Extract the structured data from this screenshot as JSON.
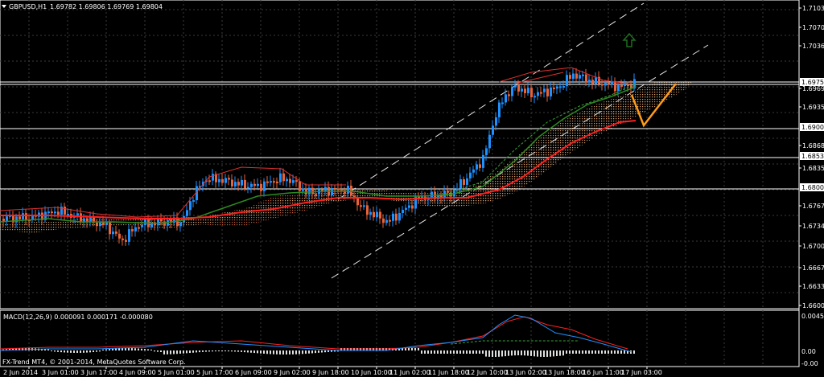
{
  "chart_header": {
    "symbol_timeframe": "GBPUSD,H1",
    "ohlc": "1.69782 1.69806 1.69769 1.69804"
  },
  "macd_header": "MACD(12,26,9) 0.000091 0.000171 -0.000080",
  "copyright": "FX-Trend MT4, © 2001-2014, MetaQuotes Software Corp.",
  "price_axis": [
    "1.71030",
    "1.70700",
    "1.70360",
    "1.69759",
    "1.69690",
    "1.69350",
    "1.69006",
    "1.68680",
    "1.68533",
    "1.68350",
    "1.68007",
    "1.67670",
    "1.67340",
    "1.67000",
    "1.66670",
    "1.66330",
    "1.66000"
  ],
  "price_levels": [
    {
      "label": "1.69759",
      "highlight": true
    },
    {
      "label": "1.69006",
      "highlight": true
    },
    {
      "label": "1.68533",
      "highlight": true
    },
    {
      "label": "1.68007",
      "highlight": true
    }
  ],
  "macd_axis": [
    "0.004541",
    "0.00",
    "-0.00"
  ],
  "time_axis": [
    "2 Jun 2014",
    "3 Jun 01:00",
    "3 Jun 17:00",
    "4 Jun 09:00",
    "5 Jun 01:00",
    "5 Jun 17:00",
    "6 Jun 09:00",
    "9 Jun 02:00",
    "9 Jun 18:00",
    "10 Jun 10:00",
    "11 Jun 02:00",
    "11 Jun 18:00",
    "12 Jun 10:00",
    "13 Jun 02:00",
    "13 Jun 18:00",
    "16 Jun 11:00",
    "17 Jun 03:00"
  ],
  "colors": {
    "background": "#000000",
    "grid": "#3a3a3a",
    "bull": "#1e90ff",
    "bear": "#e8633a",
    "ma_red": "#ff2020",
    "ma_green": "#2e8b22",
    "forecast": "#ff9a1a",
    "arrow": "#1f6e1f"
  },
  "icons": {
    "menu": "triangle-down-icon",
    "signal": "up-arrow-icon"
  }
}
